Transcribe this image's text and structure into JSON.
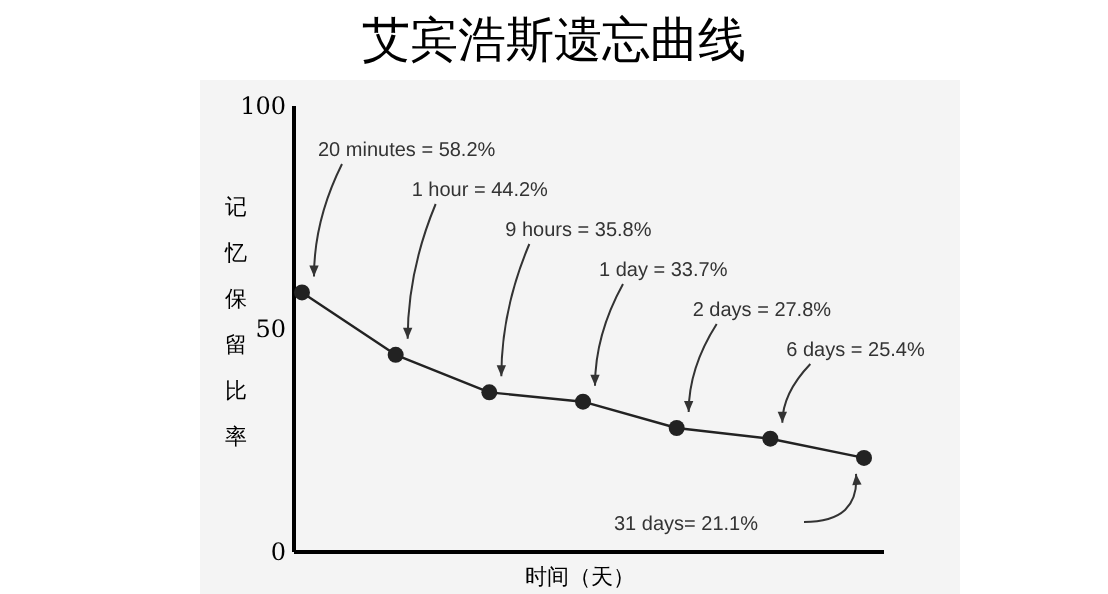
{
  "chart_data": {
    "type": "line",
    "title": "艾宾浩斯遗忘曲线",
    "xlabel": "时间（天）",
    "ylabel": "记忆保留比率",
    "categories": [
      null,
      null,
      null,
      null,
      null,
      null,
      null
    ],
    "series": [
      {
        "color": "#222222",
        "values": [
          58.2,
          44.2,
          35.8,
          33.7,
          27.8,
          25.4,
          21.1
        ]
      }
    ],
    "ylim": [
      0,
      100
    ],
    "yticks": [
      0,
      50,
      100
    ],
    "grid": false,
    "marker": "circle",
    "line_style": "solid",
    "annotations": [
      "20 minutes = 58.2%",
      "1 hour = 44.2%",
      "9 hours = 35.8%",
      "1 day = 33.7%",
      "2 days = 27.8%",
      "6 days = 25.4%",
      "31 days= 21.1%"
    ]
  }
}
